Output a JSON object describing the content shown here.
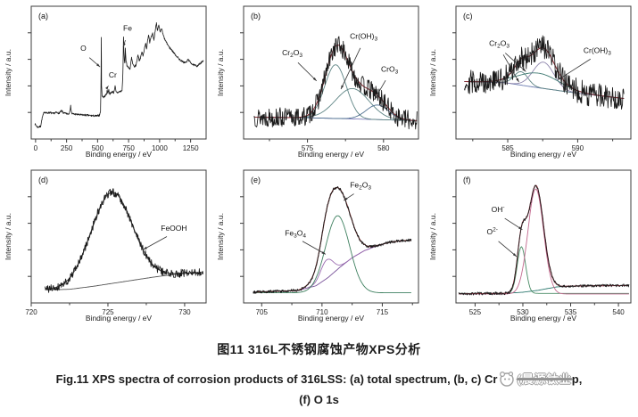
{
  "caption": {
    "cn": "图11  316L不锈钢腐蚀产物XPS分析",
    "en_prefix": "Fig.11  XPS spectra of corrosion products of 316LSS: (a) total spectrum, (b, c) Cr",
    "watermark": "(晨源钛业",
    "en_suffix": "p,",
    "en_line2": "(f) O 1s"
  },
  "chart_data": [
    {
      "id": "a",
      "tag": "(a)",
      "type": "line",
      "xlabel": "Binding energy / eV",
      "ylabel": "Intensity / a.u.",
      "xlim": [
        -35,
        1375
      ],
      "xticks": [
        0,
        250,
        500,
        750,
        1000,
        1250
      ],
      "seed": 7,
      "trace": {
        "color": "#1a1a1a",
        "noise": 0.008,
        "points": [
          [
            -5,
            0.07
          ],
          [
            15,
            0.045
          ],
          [
            40,
            0.05
          ],
          [
            55,
            0.13
          ],
          [
            70,
            0.175
          ],
          [
            90,
            0.165
          ],
          [
            115,
            0.17
          ],
          [
            140,
            0.16
          ],
          [
            165,
            0.17
          ],
          [
            190,
            0.165
          ],
          [
            210,
            0.185
          ],
          [
            225,
            0.165
          ],
          [
            250,
            0.16
          ],
          [
            270,
            0.158
          ],
          [
            283,
            0.225
          ],
          [
            292,
            0.16
          ],
          [
            320,
            0.155
          ],
          [
            360,
            0.15
          ],
          [
            400,
            0.148
          ],
          [
            450,
            0.143
          ],
          [
            490,
            0.14
          ],
          [
            515,
            0.147
          ],
          [
            524,
            0.18
          ],
          [
            528,
            0.52
          ],
          [
            530,
            0.82
          ],
          [
            532,
            0.4
          ],
          [
            536,
            0.315
          ],
          [
            548,
            0.3
          ],
          [
            562,
            0.315
          ],
          [
            572,
            0.33
          ],
          [
            578,
            0.36
          ],
          [
            584,
            0.335
          ],
          [
            590,
            0.365
          ],
          [
            597,
            0.33
          ],
          [
            607,
            0.335
          ],
          [
            618,
            0.35
          ],
          [
            630,
            0.34
          ],
          [
            641,
            0.395
          ],
          [
            649,
            0.345
          ],
          [
            662,
            0.34
          ],
          [
            680,
            0.35
          ],
          [
            697,
            0.355
          ],
          [
            704,
            0.5
          ],
          [
            709,
            0.82
          ],
          [
            712,
            0.71
          ],
          [
            716,
            0.615
          ],
          [
            720,
            0.59
          ],
          [
            724,
            0.715
          ],
          [
            729,
            0.62
          ],
          [
            736,
            0.575
          ],
          [
            748,
            0.555
          ],
          [
            762,
            0.545
          ],
          [
            774,
            0.64
          ],
          [
            783,
            0.585
          ],
          [
            795,
            0.56
          ],
          [
            810,
            0.575
          ],
          [
            826,
            0.665
          ],
          [
            836,
            0.615
          ],
          [
            848,
            0.645
          ],
          [
            858,
            0.69
          ],
          [
            866,
            0.65
          ],
          [
            877,
            0.715
          ],
          [
            887,
            0.765
          ],
          [
            895,
            0.71
          ],
          [
            903,
            0.79
          ],
          [
            912,
            0.84
          ],
          [
            920,
            0.77
          ],
          [
            932,
            0.815
          ],
          [
            944,
            0.845
          ],
          [
            954,
            0.79
          ],
          [
            965,
            0.87
          ],
          [
            974,
            0.94
          ],
          [
            983,
            0.875
          ],
          [
            994,
            0.915
          ],
          [
            1004,
            0.855
          ],
          [
            1016,
            0.89
          ],
          [
            1028,
            0.835
          ],
          [
            1042,
            0.795
          ],
          [
            1060,
            0.76
          ],
          [
            1080,
            0.725
          ],
          [
            1102,
            0.7
          ],
          [
            1130,
            0.66
          ],
          [
            1160,
            0.625
          ],
          [
            1192,
            0.6
          ],
          [
            1215,
            0.598
          ],
          [
            1230,
            0.625
          ],
          [
            1247,
            0.6
          ],
          [
            1272,
            0.578
          ],
          [
            1300,
            0.568
          ],
          [
            1330,
            0.59
          ],
          [
            1352,
            0.615
          ]
        ]
      },
      "annotations": [
        {
          "text": "O",
          "x": 385,
          "y": 0.7,
          "targets": [
            [
              520,
              0.56
            ]
          ]
        },
        {
          "text": "Cr",
          "x": 622,
          "y": 0.47,
          "targets": [
            [
              588,
              0.4
            ]
          ]
        },
        {
          "text": "Fe",
          "x": 742,
          "y": 0.87,
          "targets": [
            [
              707,
              0.73
            ]
          ]
        }
      ]
    },
    {
      "id": "b",
      "tag": "(b)",
      "type": "line",
      "xlabel": "Binding energy / eV",
      "ylabel": "Intensity / a.u.",
      "xlim": [
        570.8,
        582.3
      ],
      "xticks": [
        575,
        580
      ],
      "seed": 13,
      "fit": {
        "data_color": "#1a1a1a",
        "noise": 0.085,
        "data_range": [
          571.5,
          582.2
        ],
        "envelope_color": "#8a3038",
        "baseline": {
          "color": "#8080bc",
          "points": [
            [
              571.5,
              0.13
            ],
            [
              575,
              0.125
            ],
            [
              578,
              0.115
            ],
            [
              580,
              0.108
            ],
            [
              582.2,
              0.1
            ]
          ]
        },
        "components": [
          {
            "name": "Cr2O3",
            "center": 576.85,
            "sigma": 1.0,
            "amp": 0.46,
            "color": "#5f8585",
            "on_baseline": true
          },
          {
            "name": "Cr(OH)3",
            "center": 577.95,
            "sigma": 1.55,
            "amp": 0.26,
            "color": "#5f8585",
            "on_baseline": true
          },
          {
            "name": "CrO3",
            "center": 579.6,
            "sigma": 1.05,
            "amp": 0.125,
            "color": "#4f7090",
            "on_baseline": true
          }
        ]
      },
      "annotations": [
        {
          "text": "Cr_{2}O_{3}",
          "x": 574.0,
          "y": 0.66,
          "targets": [
            [
              575.6,
              0.44
            ]
          ]
        },
        {
          "text": "Cr(OH)_{3}",
          "x": 578.7,
          "y": 0.8,
          "targets": [
            [
              577.2,
              0.37
            ]
          ]
        },
        {
          "text": "CrO_{3}",
          "x": 580.4,
          "y": 0.52,
          "targets": [
            [
              579.4,
              0.28
            ]
          ]
        }
      ]
    },
    {
      "id": "c",
      "tag": "(c)",
      "type": "line",
      "xlabel": "Binding energy / eV",
      "ylabel": "Intensity / a.u.",
      "xlim": [
        581.3,
        593.8
      ],
      "xticks": [
        585,
        590
      ],
      "seed": 29,
      "fit": {
        "data_color": "#1a1a1a",
        "noise": 0.105,
        "data_range": [
          581.9,
          593.3
        ],
        "envelope_color": "#8a3038",
        "baseline": {
          "color": "#6a7ab0",
          "points": [
            [
              581.9,
              0.435
            ],
            [
              584.8,
              0.425
            ],
            [
              587,
              0.385
            ],
            [
              590,
              0.335
            ],
            [
              593.3,
              0.29
            ]
          ]
        },
        "components": [
          {
            "name": "Cr2O3",
            "center": 585.95,
            "sigma": 0.7,
            "amp": 0.115,
            "color": "#5f8585",
            "on_baseline": true
          },
          {
            "name": "Cr(OH)3",
            "center": 587.55,
            "sigma": 1.05,
            "amp": 0.225,
            "color": "#8f86ad",
            "on_baseline": true
          },
          {
            "name": "Cr(OH)3-broad",
            "center": 587.2,
            "sigma": 2.1,
            "amp": 0.125,
            "color": "#3f7a72",
            "on_baseline": true
          }
        ]
      },
      "annotations": [
        {
          "text": "Cr_{2}O_{3}",
          "x": 584.4,
          "y": 0.74,
          "targets": [
            [
              586.3,
              0.52
            ],
            [
              585.8,
              0.43
            ]
          ]
        },
        {
          "text": "Cr(OH)_{3}",
          "x": 591.4,
          "y": 0.68,
          "targets": [
            [
              588.6,
              0.45
            ]
          ]
        }
      ]
    },
    {
      "id": "d",
      "tag": "(d)",
      "type": "line",
      "xlabel": "Binding energy / eV",
      "ylabel": "Intensity / a.u.",
      "xlim": [
        720,
        731.4
      ],
      "xticks": [
        720,
        725,
        730
      ],
      "seed": 41,
      "fit": {
        "data_color": "#1a1a1a",
        "noise": 0.035,
        "data_range": [
          720.9,
          731.2
        ],
        "envelope_color": "#4a4a4a",
        "draw_components": false,
        "baseline": {
          "color": "#555555",
          "points": [
            [
              720.9,
              0.055
            ],
            [
              722.5,
              0.06
            ],
            [
              724,
              0.085
            ],
            [
              726,
              0.125
            ],
            [
              728,
              0.165
            ],
            [
              729.8,
              0.195
            ],
            [
              731.2,
              0.205
            ]
          ]
        },
        "components": [
          {
            "name": "FeOOH",
            "center": 725.25,
            "sigma": 1.9,
            "amp": 0.78,
            "color": "#555555",
            "on_baseline": true
          }
        ]
      },
      "annotations": [
        {
          "text": "FeOOH",
          "x": 729.3,
          "y": 0.56,
          "targets": [
            [
              727.3,
              0.4
            ]
          ]
        }
      ]
    },
    {
      "id": "e",
      "tag": "(e)",
      "type": "line",
      "xlabel": "Binding energy / eV",
      "ylabel": "Intensity / a.u.",
      "xlim": [
        703.5,
        718
      ],
      "xticks": [
        705,
        710,
        715
      ],
      "seed": 53,
      "fit": {
        "data_color": "#1a1a1a",
        "noise": 0.012,
        "data_range": [
          704.3,
          717.4
        ],
        "envelope_color": "#7a2828",
        "baseline": {
          "color": "#7a549a",
          "points": [
            [
              704.3,
              0.035
            ],
            [
              708,
              0.05
            ],
            [
              709.5,
              0.09
            ],
            [
              710.5,
              0.16
            ],
            [
              711.5,
              0.25
            ],
            [
              712.5,
              0.33
            ],
            [
              713.5,
              0.39
            ],
            [
              714.5,
              0.43
            ],
            [
              715.5,
              0.46
            ],
            [
              716.5,
              0.475
            ],
            [
              717.4,
              0.48
            ]
          ]
        },
        "components": [
          {
            "name": "Fe3O4",
            "center": 710.4,
            "sigma": 0.75,
            "amp": 0.16,
            "color": "#9a6ab0",
            "on_baseline": true
          },
          {
            "name": "Fe2O3",
            "center": 711.3,
            "sigma": 1.4,
            "amp": 0.66,
            "color": "#3f8060",
            "on_baseline": false,
            "floor": 0.03
          }
        ]
      },
      "annotations": [
        {
          "text": "Fe_{2}O_{3}",
          "x": 713.2,
          "y": 0.93,
          "targets": [
            [
              711.8,
              0.82
            ]
          ]
        },
        {
          "text": "Fe_{3}O_{4}",
          "x": 707.8,
          "y": 0.52,
          "targets": [
            [
              710.3,
              0.36
            ]
          ]
        }
      ]
    },
    {
      "id": "f",
      "tag": "(f)",
      "type": "line",
      "xlabel": "Binding energy / eV",
      "ylabel": "Intensity / a.u.",
      "xlim": [
        523,
        541.3
      ],
      "xticks": [
        525,
        530,
        535,
        540
      ],
      "seed": 67,
      "fit": {
        "data_color": "#1a1a1a",
        "noise": 0.012,
        "data_range": [
          523.3,
          541.1
        ],
        "envelope_color": "#9a3040",
        "baseline": {
          "color": "#2f7a70",
          "points": [
            [
              523.3,
              0.022
            ],
            [
              528,
              0.025
            ],
            [
              530,
              0.035
            ],
            [
              531.5,
              0.05
            ],
            [
              532.5,
              0.065
            ],
            [
              533.5,
              0.08
            ],
            [
              535,
              0.088
            ],
            [
              537,
              0.09
            ],
            [
              541.1,
              0.092
            ]
          ]
        },
        "components": [
          {
            "name": "O2-",
            "center": 529.85,
            "sigma": 0.62,
            "amp": 0.4,
            "color": "#4a8c66",
            "on_baseline": false,
            "floor": 0.025
          },
          {
            "name": "OH-",
            "center": 531.35,
            "sigma": 1.15,
            "amp": 0.9,
            "color": "#c2688e",
            "on_baseline": false,
            "floor": 0.02
          }
        ]
      },
      "annotations": [
        {
          "text": "OH^{-}",
          "x": 527.4,
          "y": 0.72,
          "targets": [
            [
              529.95,
              0.57
            ]
          ]
        },
        {
          "text": "O^{2-}",
          "x": 526.8,
          "y": 0.53,
          "targets": [
            [
              529.35,
              0.34
            ]
          ]
        }
      ]
    }
  ]
}
